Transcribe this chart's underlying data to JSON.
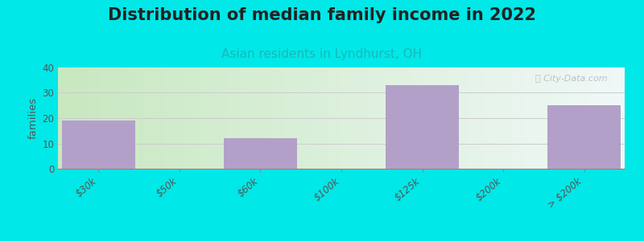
{
  "title": "Distribution of median family income in 2022",
  "subtitle": "Asian residents in Lyndhurst, OH",
  "bar_labels": [
    "$30k",
    "$50k",
    "$60k",
    "$100k",
    "$125k",
    "$200k",
    "> $200k"
  ],
  "tick_labels": [
    "$30k",
    "$50k",
    "$60k",
    "$100k",
    "$125k",
    "$200k",
    "> $200k"
  ],
  "values": [
    19,
    0,
    12,
    0,
    33,
    0,
    25
  ],
  "bar_color": "#b3a0c8",
  "background_color": "#00e8e8",
  "ylabel": "families",
  "ylim": [
    0,
    40
  ],
  "yticks": [
    0,
    10,
    20,
    30,
    40
  ],
  "title_fontsize": 15,
  "subtitle_fontsize": 11,
  "subtitle_color": "#1ab8b8",
  "watermark": "ⓘ City-Data.com",
  "watermark_color": "#b0b8c0",
  "grid_color": "#cccccc",
  "tick_color": "#555555",
  "grad_left": "#c8e8c0",
  "grad_right": "#f0f8f8"
}
